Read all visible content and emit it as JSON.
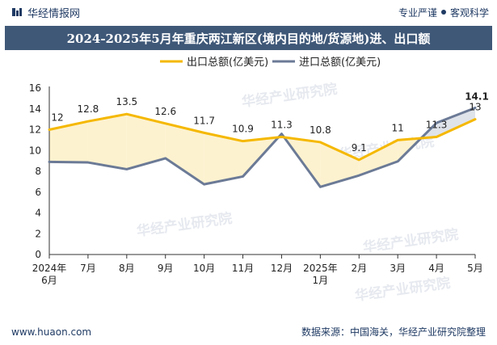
{
  "header": {
    "brand": "华经情报网",
    "tagline_left": "专业严谨",
    "tagline_right": "客观科学"
  },
  "title": "2024-2025年5月年重庆两江新区(境内目的地/货源地)进、出口额",
  "footer": {
    "website": "www.huaon.com",
    "source": "数据来源：中国海关，华经产业研究院整理"
  },
  "watermark": "华经产业研究院",
  "watermark_url": "www.huaon.com",
  "colors": {
    "export": "#f5b800",
    "import": "#6b7a96",
    "fill_export_above": "#fdf2cf",
    "fill_import_above": "#dfe3ea",
    "title_bg": "#3f5878"
  },
  "chart_data": {
    "type": "line",
    "categories": [
      "2024年\n6月",
      "7月",
      "8月",
      "9月",
      "10月",
      "11月",
      "12月",
      "2025年\n1月",
      "2月",
      "3月",
      "4月",
      "5月"
    ],
    "series": [
      {
        "name": "出口总额(亿美元)",
        "values": [
          12,
          12.8,
          13.5,
          12.6,
          11.7,
          10.9,
          11.3,
          10.8,
          9.1,
          11,
          11.3,
          13
        ],
        "labels": [
          "12",
          "12.8",
          "13.5",
          "12.6",
          "11.7",
          "10.9",
          "11.3",
          "10.8",
          "9.1",
          "11",
          "11.3",
          "13"
        ]
      },
      {
        "name": "进口总额(亿美元)",
        "values": [
          8.9,
          8.85,
          8.2,
          9.25,
          6.75,
          7.5,
          11.6,
          6.5,
          7.6,
          8.95,
          12.65,
          14.1
        ],
        "labels": [
          "",
          "",
          "",
          "",
          "",
          "",
          "",
          "",
          "",
          "",
          "",
          "14.1"
        ]
      }
    ],
    "ylim": [
      0,
      16
    ],
    "yticks": [
      0,
      2,
      4,
      6,
      8,
      10,
      12,
      14,
      16
    ],
    "grid": false,
    "legend": "top-center"
  }
}
